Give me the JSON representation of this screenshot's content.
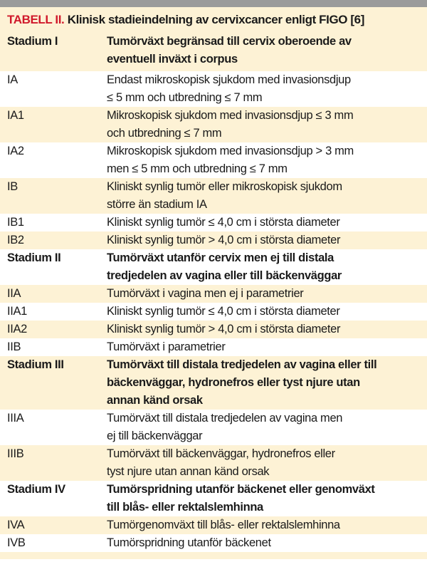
{
  "title": {
    "label": "TABELL II.",
    "text": " Klinisk stadieindelning av cervixcancer enligt FIGO [6]"
  },
  "colors": {
    "accent": "#d0192b",
    "row_alt": "#fdf2d5",
    "top_bar": "#9b9b9b"
  },
  "rows": [
    {
      "stage": "Stadium I",
      "bold": true,
      "lines": [
        "Tumörväxt begränsad till cervix oberoende av",
        "eventuell inväxt i corpus"
      ]
    },
    {
      "stage": "IA",
      "lines": [
        "Endast mikroskopisk sjukdom med invasionsdjup",
        "≤ 5 mm och utbredning ≤ 7 mm"
      ]
    },
    {
      "stage": "IA1",
      "lines": [
        "Mikroskopisk sjukdom med invasionsdjup ≤ 3 mm",
        "och utbredning ≤ 7 mm"
      ]
    },
    {
      "stage": "IA2",
      "lines": [
        "Mikroskopisk sjukdom med invasionsdjup > 3 mm",
        "men ≤ 5 mm och utbredning ≤ 7 mm"
      ]
    },
    {
      "stage": "IB",
      "lines": [
        "Kliniskt synlig tumör eller mikroskopisk sjukdom",
        "större än stadium IA"
      ]
    },
    {
      "stage": "IB1",
      "lines": [
        "Kliniskt synlig tumör ≤ 4,0 cm i största diameter"
      ]
    },
    {
      "stage": "IB2",
      "lines": [
        "Kliniskt synlig tumör > 4,0 cm i största diameter"
      ]
    },
    {
      "stage": "Stadium II",
      "bold": true,
      "lines": [
        "Tumörväxt utanför cervix men ej till distala",
        "tredjedelen av vagina eller till bäckenväggar"
      ]
    },
    {
      "stage": "IIA",
      "lines": [
        "Tumörväxt i vagina men ej i parametrier"
      ]
    },
    {
      "stage": "IIA1",
      "lines": [
        "Kliniskt synlig tumör ≤ 4,0 cm i största diameter"
      ]
    },
    {
      "stage": "IIA2",
      "lines": [
        "Kliniskt synlig tumör > 4,0 cm i största diameter"
      ]
    },
    {
      "stage": "IIB",
      "lines": [
        "Tumörväxt i parametrier"
      ]
    },
    {
      "stage": "Stadium III",
      "bold": true,
      "lines": [
        "Tumörväxt till distala tredjedelen av vagina eller till",
        "bäckenväggar, hydronefros eller tyst njure utan",
        "annan känd orsak"
      ]
    },
    {
      "stage": "IIIA",
      "lines": [
        "Tumörväxt till distala tredjedelen av vagina men",
        "ej till bäckenväggar"
      ]
    },
    {
      "stage": "IIIB",
      "lines": [
        "Tumörväxt till bäckenväggar, hydronefros eller",
        "tyst njure utan annan känd orsak"
      ]
    },
    {
      "stage": "Stadium IV",
      "bold": true,
      "lines": [
        "Tumörspridning utanför bäckenet eller genomväxt",
        "till blås- eller rektalslemhinna"
      ]
    },
    {
      "stage": "IVA",
      "lines": [
        "Tumörgenomväxt till blås- eller rektalslemhinna"
      ]
    },
    {
      "stage": "IVB",
      "lines": [
        "Tumörspridning utanför bäckenet"
      ]
    }
  ]
}
